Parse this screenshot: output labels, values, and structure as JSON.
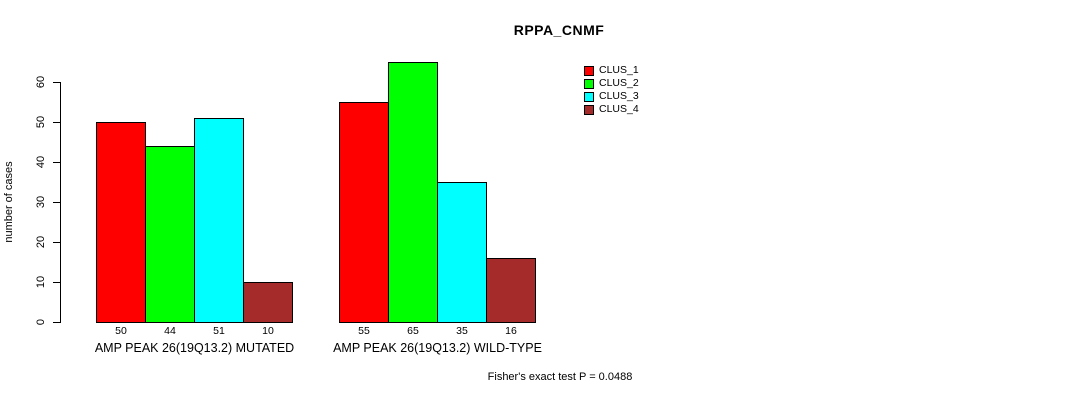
{
  "chart_data": {
    "type": "bar",
    "title": "RPPA_CNMF",
    "ylabel": "number of cases",
    "xlabel": "",
    "ylim": [
      0,
      60
    ],
    "yticks": [
      0,
      10,
      20,
      30,
      40,
      50,
      60
    ],
    "grid": false,
    "legend_position": "right",
    "series": [
      {
        "name": "CLUS_1",
        "color": "#FF0000"
      },
      {
        "name": "CLUS_2",
        "color": "#00FF00"
      },
      {
        "name": "CLUS_3",
        "color": "#00FFFF"
      },
      {
        "name": "CLUS_4",
        "color": "#A52A2A"
      }
    ],
    "groups": [
      {
        "label": "AMP PEAK 26(19Q13.2) MUTATED",
        "values": [
          50,
          44,
          51,
          10
        ]
      },
      {
        "label": "AMP PEAK 26(19Q13.2) WILD-TYPE",
        "values": [
          55,
          65,
          35,
          16
        ]
      }
    ],
    "annotation": "Fisher's exact test P = 0.0488"
  }
}
